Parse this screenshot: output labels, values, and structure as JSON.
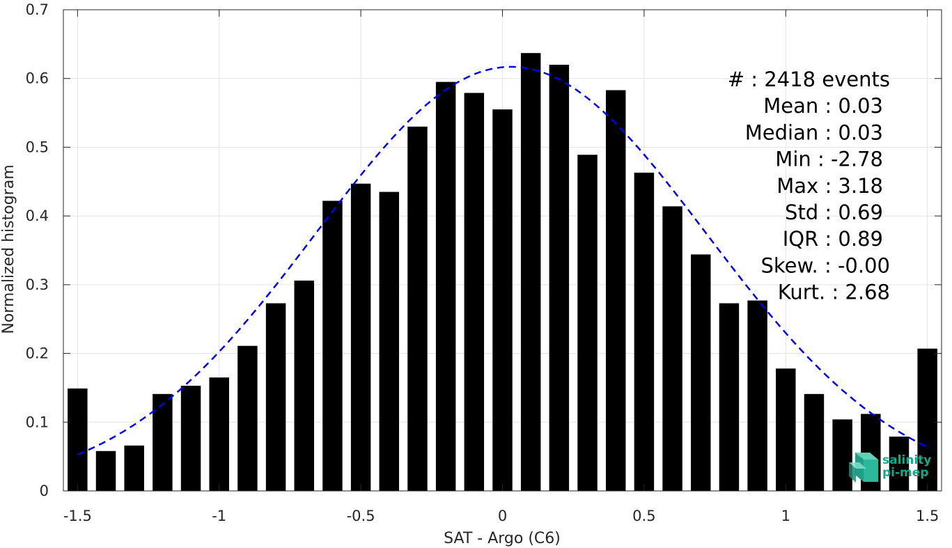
{
  "chart_data": {
    "type": "bar",
    "xlabel": "SAT - Argo (C6)",
    "ylabel": "Normalized histogram",
    "xlim": [
      -1.55,
      1.55
    ],
    "ylim": [
      0,
      0.7
    ],
    "grid": true,
    "x_ticks": [
      -1.5,
      -1,
      -0.5,
      0,
      0.5,
      1,
      1.5
    ],
    "x_tick_labels": [
      "-1.5",
      "-1",
      "-0.5",
      "0",
      "0.5",
      "1",
      "1.5"
    ],
    "y_ticks": [
      0,
      0.1,
      0.2,
      0.3,
      0.4,
      0.5,
      0.6,
      0.7
    ],
    "y_tick_labels": [
      "0",
      "0.1",
      "0.2",
      "0.3",
      "0.4",
      "0.5",
      "0.6",
      "0.7"
    ],
    "bar_color": "#000000",
    "bars": {
      "x": [
        -1.5,
        -1.4,
        -1.3,
        -1.2,
        -1.1,
        -1.0,
        -0.9,
        -0.8,
        -0.7,
        -0.6,
        -0.5,
        -0.4,
        -0.3,
        -0.2,
        -0.1,
        0.0,
        0.1,
        0.2,
        0.3,
        0.4,
        0.5,
        0.6,
        0.7,
        0.8,
        0.9,
        1.0,
        1.1,
        1.2,
        1.3,
        1.4,
        1.5
      ],
      "values": [
        0.149,
        0.058,
        0.066,
        0.141,
        0.153,
        0.165,
        0.211,
        0.273,
        0.306,
        0.422,
        0.447,
        0.435,
        0.53,
        0.595,
        0.579,
        0.555,
        0.637,
        0.62,
        0.489,
        0.583,
        0.463,
        0.414,
        0.344,
        0.273,
        0.277,
        0.178,
        0.141,
        0.104,
        0.112,
        0.079,
        0.207
      ]
    },
    "fit_curve": {
      "type": "gaussian",
      "style": "dashed",
      "color": "#0000ff",
      "mean": 0.03,
      "std": 0.69,
      "peak": 0.617,
      "x_range": [
        -1.5,
        1.5
      ]
    },
    "annotations": [
      "#  : 2418 events",
      "Mean : 0.03",
      "Median : 0.03",
      "Min : -2.78",
      "Max : 3.18",
      "Std : 0.69",
      "IQR : 0.89",
      "Skew. : -0.00",
      "Kurt. : 2.68"
    ],
    "logo": {
      "line1": "salinity",
      "line2": "pi-mep",
      "color": "#17a88a"
    }
  }
}
